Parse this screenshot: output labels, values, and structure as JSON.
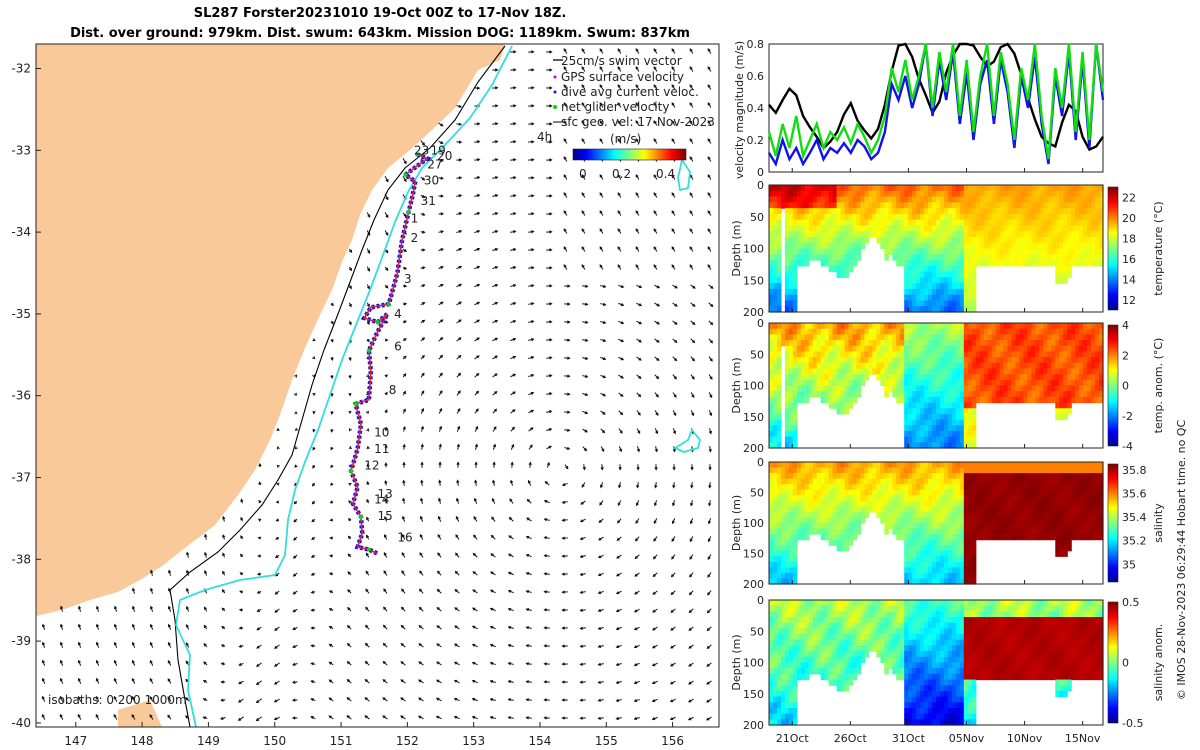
{
  "title": {
    "line1": "SL287 Forster20231010 19-Oct 00Z to 17-Nov 18Z.",
    "line2": "Dist. over ground: 979km. Dist. swum: 643km. Mission DOG: 1189km. Swum: 837km"
  },
  "colors": {
    "land": "#f9c99a",
    "track": "#d62728",
    "swim": "#1010ff",
    "gps": "#cc00cc",
    "net": "#00dd00",
    "isobath200": "#000000",
    "isobath1000": "#33dddd"
  },
  "chart_data": [
    {
      "type": "map",
      "name": "glider-track-map",
      "xlim": [
        146.4,
        156.7
      ],
      "ylim": [
        -40.05,
        -31.7
      ],
      "xticks": [
        "147",
        "148",
        "149",
        "150",
        "151",
        "152",
        "153",
        "154",
        "155",
        "156"
      ],
      "yticks": [
        "-32",
        "-33",
        "-34",
        "-35",
        "-36",
        "-37",
        "-38",
        "-39",
        "-40"
      ],
      "legend": [
        "25cm/s swim vector",
        "GPS surface velocity",
        "dive avg current veloc.",
        "net glider velocity",
        "sfc geo. vel: 17-Nov-2023"
      ],
      "vel_scale_label": "4h",
      "colorbar": {
        "label": "(m/s)",
        "ticks": [
          "0",
          "0.2",
          "0.4"
        ],
        "range": [
          0,
          0.5
        ]
      },
      "isobath_label": "isobaths: 0  200  1000m",
      "day_labels": [
        {
          "d": "19",
          "lon": 152.35,
          "lat": -33.05
        },
        {
          "d": "23",
          "lon": 152.1,
          "lat": -33.05
        },
        {
          "d": "20",
          "lon": 152.45,
          "lat": -33.12
        },
        {
          "d": "27",
          "lon": 152.3,
          "lat": -33.22
        },
        {
          "d": "30",
          "lon": 152.25,
          "lat": -33.42
        },
        {
          "d": "31",
          "lon": 152.2,
          "lat": -33.67
        },
        {
          "d": "1",
          "lon": 152.05,
          "lat": -33.88
        },
        {
          "d": "2",
          "lon": 152.05,
          "lat": -34.12
        },
        {
          "d": "3",
          "lon": 151.95,
          "lat": -34.62
        },
        {
          "d": "4",
          "lon": 151.8,
          "lat": -35.05
        },
        {
          "d": "6",
          "lon": 151.8,
          "lat": -35.45
        },
        {
          "d": "8",
          "lon": 151.72,
          "lat": -35.98
        },
        {
          "d": "10",
          "lon": 151.5,
          "lat": -36.5
        },
        {
          "d": "11",
          "lon": 151.5,
          "lat": -36.7
        },
        {
          "d": "12",
          "lon": 151.35,
          "lat": -36.9
        },
        {
          "d": "13",
          "lon": 151.55,
          "lat": -37.25
        },
        {
          "d": "14",
          "lon": 151.5,
          "lat": -37.32
        },
        {
          "d": "15",
          "lon": 151.55,
          "lat": -37.52
        },
        {
          "d": "16",
          "lon": 151.85,
          "lat": -37.78
        }
      ],
      "track": [
        [
          152.15,
          -33.05
        ],
        [
          152.3,
          -33.1
        ],
        [
          152.05,
          -33.25
        ],
        [
          151.97,
          -33.3
        ],
        [
          152.12,
          -33.38
        ],
        [
          152.08,
          -33.55
        ],
        [
          152.02,
          -33.75
        ],
        [
          151.92,
          -34.1
        ],
        [
          151.85,
          -34.5
        ],
        [
          151.72,
          -34.88
        ],
        [
          151.45,
          -34.92
        ],
        [
          151.35,
          -35.05
        ],
        [
          151.55,
          -35.1
        ],
        [
          151.7,
          -35.0
        ],
        [
          151.55,
          -35.22
        ],
        [
          151.42,
          -35.45
        ],
        [
          151.45,
          -35.7
        ],
        [
          151.42,
          -36.05
        ],
        [
          151.22,
          -36.1
        ],
        [
          151.3,
          -36.35
        ],
        [
          151.25,
          -36.65
        ],
        [
          151.15,
          -36.92
        ],
        [
          151.25,
          -37.12
        ],
        [
          151.18,
          -37.32
        ],
        [
          151.3,
          -37.48
        ],
        [
          151.32,
          -37.68
        ],
        [
          151.25,
          -37.85
        ],
        [
          151.42,
          -37.88
        ],
        [
          151.55,
          -37.93
        ]
      ]
    },
    {
      "type": "line",
      "name": "velocity-magnitude",
      "ylabel": "velocity magnitude (m/s)",
      "ylim": [
        0,
        0.8
      ],
      "yticks": [
        "0",
        "0.2",
        "0.4",
        "0.6",
        "0.8"
      ],
      "series": [
        {
          "name": "sfc geo. vel",
          "color": "#000000",
          "values": [
            0.42,
            0.37,
            0.45,
            0.52,
            0.48,
            0.35,
            0.28,
            0.22,
            0.15,
            0.19,
            0.25,
            0.36,
            0.43,
            0.32,
            0.26,
            0.21,
            0.27,
            0.42,
            0.63,
            0.79,
            0.82,
            0.72,
            0.58,
            0.48,
            0.37,
            0.44,
            0.62,
            0.73,
            0.81,
            0.84,
            0.79,
            0.72,
            0.66,
            0.69,
            0.78,
            0.82,
            0.74,
            0.61,
            0.46,
            0.33,
            0.22,
            0.18,
            0.16,
            0.31,
            0.42,
            0.38,
            0.22,
            0.14,
            0.16,
            0.22
          ]
        },
        {
          "name": "dive avg current veloc.",
          "color": "#1111ee",
          "values": [
            0.12,
            0.05,
            0.2,
            0.08,
            0.15,
            0.05,
            0.12,
            0.2,
            0.08,
            0.15,
            0.12,
            0.18,
            0.12,
            0.2,
            0.16,
            0.08,
            0.12,
            0.25,
            0.55,
            0.45,
            0.6,
            0.4,
            0.55,
            0.8,
            0.35,
            0.7,
            0.45,
            0.75,
            0.3,
            0.62,
            0.2,
            0.55,
            0.7,
            0.3,
            0.7,
            0.5,
            0.15,
            0.6,
            0.4,
            0.72,
            0.3,
            0.05,
            0.6,
            0.35,
            0.75,
            0.2,
            0.7,
            0.15,
            0.8,
            0.45
          ]
        },
        {
          "name": "net glider velocity",
          "color": "#11dd11",
          "values": [
            0.25,
            0.1,
            0.3,
            0.15,
            0.35,
            0.1,
            0.2,
            0.3,
            0.15,
            0.25,
            0.2,
            0.28,
            0.18,
            0.3,
            0.22,
            0.12,
            0.2,
            0.35,
            0.65,
            0.5,
            0.7,
            0.45,
            0.6,
            0.8,
            0.4,
            0.75,
            0.5,
            0.8,
            0.35,
            0.7,
            0.25,
            0.6,
            0.8,
            0.35,
            0.75,
            0.55,
            0.2,
            0.65,
            0.45,
            0.8,
            0.35,
            0.08,
            0.65,
            0.4,
            0.8,
            0.25,
            0.75,
            0.2,
            0.8,
            0.5
          ]
        }
      ]
    },
    {
      "type": "heatmap",
      "name": "temperature",
      "ylabel": "Depth (m)",
      "yticks": [
        "0",
        "50",
        "100",
        "150",
        "200"
      ],
      "colorbar_label": "temperature (°C)",
      "colorbar_ticks": [
        "22",
        "20",
        "18",
        "16",
        "14",
        "12"
      ],
      "range": [
        11,
        23
      ]
    },
    {
      "type": "heatmap",
      "name": "temperature-anomaly",
      "ylabel": "Depth (m)",
      "yticks": [
        "0",
        "50",
        "100",
        "150",
        "200"
      ],
      "colorbar_label": "temp. anom. (°C)",
      "colorbar_ticks": [
        "4",
        "2",
        "0",
        "-2",
        "-4"
      ],
      "range": [
        -4,
        4
      ]
    },
    {
      "type": "heatmap",
      "name": "salinity",
      "ylabel": "Depth (m)",
      "yticks": [
        "0",
        "50",
        "100",
        "150",
        "200"
      ],
      "colorbar_label": "salinity",
      "colorbar_ticks": [
        "35.8",
        "35.6",
        "35.4",
        "35.2",
        "35"
      ],
      "range": [
        34.85,
        35.85
      ]
    },
    {
      "type": "heatmap",
      "name": "salinity-anomaly",
      "ylabel": "Depth (m)",
      "yticks": [
        "0",
        "50",
        "100",
        "150",
        "200"
      ],
      "colorbar_label": "salinity anom.",
      "colorbar_ticks": [
        "0.5",
        "0",
        "-0.5"
      ],
      "range": [
        -0.5,
        0.5
      ]
    }
  ],
  "time_axis": {
    "labels": [
      "21Oct",
      "26Oct",
      "31Oct",
      "05Nov",
      "10Nov",
      "15Nov"
    ],
    "start_day": 19.0,
    "end_day": 47.75,
    "label_days": [
      21,
      26,
      31,
      36,
      41,
      46
    ]
  },
  "footer": "© IMOS 28-Nov-2023 06:29:44 Hobart time. no QC"
}
